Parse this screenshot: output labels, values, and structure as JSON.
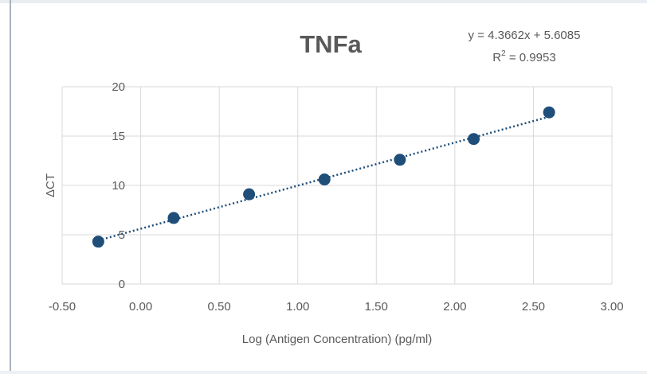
{
  "chart_data": {
    "type": "scatter",
    "title": "TNFa",
    "xlabel": "Log (Antigen Concentration) (pg/ml)",
    "ylabel": "ΔCT",
    "xlim": [
      -0.5,
      3.0
    ],
    "ylim": [
      0,
      20
    ],
    "x_ticks": [
      "-0.50",
      "0.00",
      "0.50",
      "1.00",
      "1.50",
      "2.00",
      "2.50",
      "3.00"
    ],
    "y_ticks": [
      "0",
      "5",
      "10",
      "15",
      "20"
    ],
    "grid": true,
    "legend": "none",
    "series": [
      {
        "x": [
          -0.27,
          0.21,
          0.69,
          1.17,
          1.65,
          2.12,
          2.6
        ],
        "y": [
          4.3,
          6.7,
          9.1,
          10.6,
          12.6,
          14.7,
          17.4
        ],
        "color": "#1f4e79"
      }
    ],
    "trendline": {
      "type": "linear",
      "slope": 4.3662,
      "intercept": 5.6085,
      "equation_line1": "y = 4.3662x + 5.6085",
      "r2_prefix": "R",
      "r2_sup": "2",
      "r2_value": " = 0.9953"
    }
  }
}
